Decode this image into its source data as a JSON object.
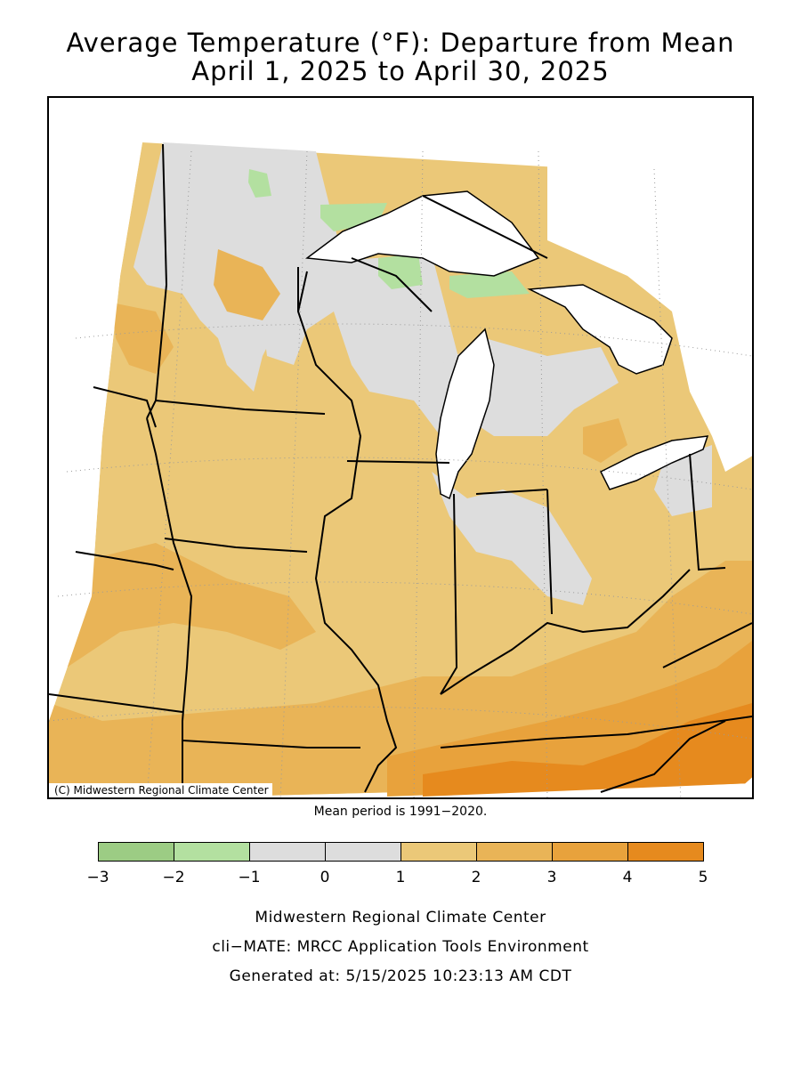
{
  "title": {
    "line1": "Average Temperature (°F): Departure from Mean",
    "line2": "April 1, 2025 to April 30, 2025"
  },
  "map": {
    "copyright": "(C) Midwestern Regional Climate Center"
  },
  "mean_period": "Mean period is 1991−2020.",
  "legend": {
    "bins": [
      {
        "from": -3,
        "to": -2,
        "color": "#9ccc84"
      },
      {
        "from": -2,
        "to": -1,
        "color": "#b3e0a0"
      },
      {
        "from": -1,
        "to": 0,
        "color": "#dddddd"
      },
      {
        "from": 0,
        "to": 1,
        "color": "#dddddd"
      },
      {
        "from": 1,
        "to": 2,
        "color": "#ebc878"
      },
      {
        "from": 2,
        "to": 3,
        "color": "#e9b457"
      },
      {
        "from": 3,
        "to": 4,
        "color": "#e8a23c"
      },
      {
        "from": 4,
        "to": 5,
        "color": "#e68a1e"
      }
    ],
    "tick_labels": [
      "−3",
      "−2",
      "−1",
      "0",
      "1",
      "2",
      "3",
      "4",
      "5"
    ]
  },
  "footer": {
    "line1": "Midwestern Regional Climate Center",
    "line2": "cli−MATE: MRCC Application Tools Environment",
    "line3": "Generated at: 5/15/2025 10:23:13 AM CDT"
  }
}
